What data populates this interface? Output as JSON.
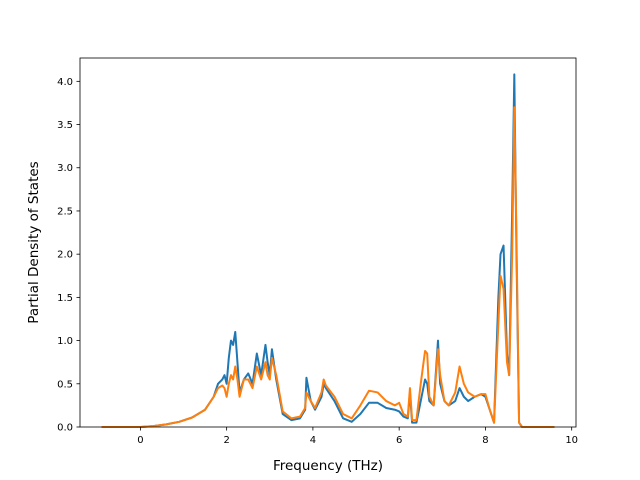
{
  "chart_data": {
    "type": "line",
    "title": "",
    "xlabel": "Frequency (THz)",
    "ylabel": "Partial Density of States",
    "xlim": [
      -1.4,
      10.1
    ],
    "ylim": [
      0.0,
      4.27
    ],
    "x_ticks": [
      0,
      2,
      4,
      6,
      8,
      10
    ],
    "y_ticks": [
      0.0,
      0.5,
      1.0,
      1.5,
      2.0,
      2.5,
      3.0,
      3.5,
      4.0
    ],
    "x_tick_labels": [
      "0",
      "2",
      "4",
      "6",
      "8",
      "10"
    ],
    "y_tick_labels": [
      "0.0",
      "0.5",
      "1.0",
      "1.5",
      "2.0",
      "2.5",
      "3.0",
      "3.5",
      "4.0"
    ],
    "grid": false,
    "legend": "none",
    "series": [
      {
        "color": "#1f77b4",
        "points": [
          [
            -0.9,
            0
          ],
          [
            0,
            0
          ],
          [
            0.3,
            0.01
          ],
          [
            0.6,
            0.03
          ],
          [
            0.9,
            0.06
          ],
          [
            1.2,
            0.11
          ],
          [
            1.5,
            0.2
          ],
          [
            1.7,
            0.35
          ],
          [
            1.8,
            0.5
          ],
          [
            1.9,
            0.55
          ],
          [
            1.95,
            0.6
          ],
          [
            2.0,
            0.5
          ],
          [
            2.05,
            0.8
          ],
          [
            2.1,
            1.0
          ],
          [
            2.15,
            0.95
          ],
          [
            2.2,
            1.1
          ],
          [
            2.25,
            0.75
          ],
          [
            2.3,
            0.4
          ],
          [
            2.4,
            0.55
          ],
          [
            2.5,
            0.62
          ],
          [
            2.6,
            0.5
          ],
          [
            2.7,
            0.85
          ],
          [
            2.8,
            0.6
          ],
          [
            2.9,
            0.95
          ],
          [
            2.95,
            0.75
          ],
          [
            3.0,
            0.6
          ],
          [
            3.05,
            0.9
          ],
          [
            3.15,
            0.55
          ],
          [
            3.3,
            0.15
          ],
          [
            3.5,
            0.08
          ],
          [
            3.7,
            0.1
          ],
          [
            3.82,
            0.2
          ],
          [
            3.85,
            0.57
          ],
          [
            3.95,
            0.3
          ],
          [
            4.05,
            0.2
          ],
          [
            4.2,
            0.35
          ],
          [
            4.25,
            0.5
          ],
          [
            4.3,
            0.45
          ],
          [
            4.5,
            0.3
          ],
          [
            4.7,
            0.1
          ],
          [
            4.9,
            0.06
          ],
          [
            5.1,
            0.15
          ],
          [
            5.3,
            0.28
          ],
          [
            5.5,
            0.28
          ],
          [
            5.7,
            0.22
          ],
          [
            5.9,
            0.2
          ],
          [
            6.0,
            0.18
          ],
          [
            6.1,
            0.12
          ],
          [
            6.2,
            0.1
          ],
          [
            6.25,
            0.4
          ],
          [
            6.3,
            0.05
          ],
          [
            6.4,
            0.05
          ],
          [
            6.5,
            0.3
          ],
          [
            6.6,
            0.55
          ],
          [
            6.65,
            0.5
          ],
          [
            6.7,
            0.3
          ],
          [
            6.8,
            0.25
          ],
          [
            6.9,
            1.0
          ],
          [
            6.95,
            0.5
          ],
          [
            7.05,
            0.3
          ],
          [
            7.15,
            0.25
          ],
          [
            7.3,
            0.3
          ],
          [
            7.4,
            0.45
          ],
          [
            7.5,
            0.35
          ],
          [
            7.6,
            0.3
          ],
          [
            7.75,
            0.35
          ],
          [
            7.9,
            0.38
          ],
          [
            8.0,
            0.35
          ],
          [
            8.1,
            0.2
          ],
          [
            8.2,
            0.05
          ],
          [
            8.3,
            1.5
          ],
          [
            8.35,
            2.0
          ],
          [
            8.42,
            2.1
          ],
          [
            8.5,
            0.85
          ],
          [
            8.55,
            0.6
          ],
          [
            8.62,
            2.5
          ],
          [
            8.67,
            4.08
          ],
          [
            8.72,
            2.0
          ],
          [
            8.78,
            0.05
          ],
          [
            8.85,
            0
          ],
          [
            9.6,
            0
          ]
        ]
      },
      {
        "color": "#ff7f0e",
        "points": [
          [
            -0.9,
            0
          ],
          [
            0,
            0
          ],
          [
            0.3,
            0.01
          ],
          [
            0.6,
            0.03
          ],
          [
            0.9,
            0.06
          ],
          [
            1.2,
            0.11
          ],
          [
            1.5,
            0.2
          ],
          [
            1.7,
            0.35
          ],
          [
            1.8,
            0.45
          ],
          [
            1.9,
            0.48
          ],
          [
            1.95,
            0.45
          ],
          [
            2.0,
            0.35
          ],
          [
            2.05,
            0.5
          ],
          [
            2.1,
            0.6
          ],
          [
            2.15,
            0.55
          ],
          [
            2.2,
            0.7
          ],
          [
            2.25,
            0.55
          ],
          [
            2.3,
            0.35
          ],
          [
            2.4,
            0.55
          ],
          [
            2.5,
            0.55
          ],
          [
            2.6,
            0.45
          ],
          [
            2.7,
            0.7
          ],
          [
            2.8,
            0.55
          ],
          [
            2.9,
            0.75
          ],
          [
            2.95,
            0.6
          ],
          [
            3.0,
            0.55
          ],
          [
            3.05,
            0.8
          ],
          [
            3.15,
            0.6
          ],
          [
            3.3,
            0.18
          ],
          [
            3.5,
            0.1
          ],
          [
            3.7,
            0.12
          ],
          [
            3.82,
            0.22
          ],
          [
            3.85,
            0.4
          ],
          [
            3.95,
            0.3
          ],
          [
            4.05,
            0.22
          ],
          [
            4.2,
            0.4
          ],
          [
            4.25,
            0.55
          ],
          [
            4.3,
            0.48
          ],
          [
            4.5,
            0.35
          ],
          [
            4.7,
            0.15
          ],
          [
            4.9,
            0.1
          ],
          [
            5.1,
            0.25
          ],
          [
            5.3,
            0.42
          ],
          [
            5.5,
            0.4
          ],
          [
            5.7,
            0.3
          ],
          [
            5.9,
            0.25
          ],
          [
            6.0,
            0.28
          ],
          [
            6.1,
            0.15
          ],
          [
            6.2,
            0.12
          ],
          [
            6.25,
            0.45
          ],
          [
            6.3,
            0.08
          ],
          [
            6.4,
            0.08
          ],
          [
            6.5,
            0.5
          ],
          [
            6.6,
            0.88
          ],
          [
            6.65,
            0.85
          ],
          [
            6.7,
            0.35
          ],
          [
            6.8,
            0.25
          ],
          [
            6.9,
            0.9
          ],
          [
            6.95,
            0.6
          ],
          [
            7.05,
            0.3
          ],
          [
            7.15,
            0.25
          ],
          [
            7.3,
            0.4
          ],
          [
            7.4,
            0.7
          ],
          [
            7.5,
            0.5
          ],
          [
            7.6,
            0.4
          ],
          [
            7.75,
            0.35
          ],
          [
            7.9,
            0.38
          ],
          [
            8.0,
            0.38
          ],
          [
            8.1,
            0.2
          ],
          [
            8.2,
            0.05
          ],
          [
            8.3,
            1.2
          ],
          [
            8.35,
            1.75
          ],
          [
            8.42,
            1.6
          ],
          [
            8.5,
            0.75
          ],
          [
            8.55,
            0.6
          ],
          [
            8.62,
            2.0
          ],
          [
            8.67,
            3.7
          ],
          [
            8.72,
            2.2
          ],
          [
            8.78,
            0.05
          ],
          [
            8.85,
            0
          ],
          [
            9.6,
            0
          ]
        ]
      }
    ]
  }
}
